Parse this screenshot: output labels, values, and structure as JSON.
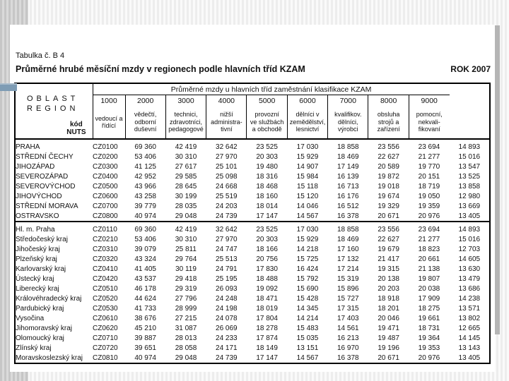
{
  "colors": {
    "accent_bar": "#7e9cb4"
  },
  "document": {
    "table_label": "Tabulka č. B 4",
    "title": "Průměrné hrubé měsíční mzdy v regionech podle hlavních tříd KZAM",
    "year_label": "ROK 2007"
  },
  "table": {
    "corner_title": "OBLAST\nREGION",
    "corner_sub": "kód\nNUTS",
    "span_header": "Průměrné mzdy u hlavních tříd zaměstnání klasifikace KZAM",
    "columns": [
      {
        "code": "1000",
        "desc": "vedoucí a\nřídící"
      },
      {
        "code": "2000",
        "desc": "vědečtí,\nodborní\nduševní"
      },
      {
        "code": "3000",
        "desc": "technici,\nzdravotníci,\npedagogové"
      },
      {
        "code": "4000",
        "desc": "nižší\nadministra-\ntivní"
      },
      {
        "code": "5000",
        "desc": "provozní\nve službách\na obchodě"
      },
      {
        "code": "6000",
        "desc": "dělníci v\nzemědělství,\nlesnictví"
      },
      {
        "code": "7000",
        "desc": "kvalifikov.\ndělníci,\nvýrobci"
      },
      {
        "code": "8000",
        "desc": "obsluha\nstrojů a\nzařízení"
      },
      {
        "code": "9000",
        "desc": "pomocní,\nnekvali-\nfikovaní"
      }
    ],
    "regions": [
      {
        "name": "PRAHA",
        "nuts": "CZ0100",
        "values": [
          "69 360",
          "42 419",
          "32 642",
          "23 525",
          "17 030",
          "18 858",
          "23 556",
          "23 694",
          "14 893"
        ]
      },
      {
        "name": "STŘEDNÍ ČECHY",
        "nuts": "CZ0200",
        "values": [
          "53 406",
          "30 310",
          "27 970",
          "20 303",
          "15 929",
          "18 469",
          "22 627",
          "21 277",
          "15 016"
        ]
      },
      {
        "name": "JIHOZÁPAD",
        "nuts": "CZ0300",
        "values": [
          "41 125",
          "27 617",
          "25 101",
          "19 480",
          "14 907",
          "17 149",
          "20 589",
          "19 770",
          "13 547"
        ]
      },
      {
        "name": "SEVEROZÁPAD",
        "nuts": "CZ0400",
        "values": [
          "42 952",
          "29 585",
          "25 098",
          "18 316",
          "15 984",
          "16 139",
          "19 872",
          "20 151",
          "13 525"
        ]
      },
      {
        "name": "SEVEROVÝCHOD",
        "nuts": "CZ0500",
        "values": [
          "43 966",
          "28 645",
          "24 668",
          "18 468",
          "15 118",
          "16 713",
          "19 018",
          "18 719",
          "13 858"
        ]
      },
      {
        "name": "JIHOVÝCHOD",
        "nuts": "CZ0600",
        "values": [
          "43 258",
          "30 199",
          "25 519",
          "18 160",
          "15 120",
          "16 176",
          "19 674",
          "19 050",
          "12 980"
        ]
      },
      {
        "name": "STŘEDNÍ MORAVA",
        "nuts": "CZ0700",
        "values": [
          "39 779",
          "28 035",
          "24 203",
          "18 014",
          "14 046",
          "16 512",
          "19 329",
          "19 359",
          "13 669"
        ]
      },
      {
        "name": "OSTRAVSKO",
        "nuts": "CZ0800",
        "values": [
          "40 974",
          "29 048",
          "24 739",
          "17 147",
          "14 567",
          "16 378",
          "20 671",
          "20 976",
          "13 405"
        ]
      }
    ],
    "kraje": [
      {
        "name": "Hl. m. Praha",
        "nuts": "CZ0110",
        "values": [
          "69 360",
          "42 419",
          "32 642",
          "23 525",
          "17 030",
          "18 858",
          "23 556",
          "23 694",
          "14 893"
        ]
      },
      {
        "name": "Středočeský kraj",
        "nuts": "CZ0210",
        "values": [
          "53 406",
          "30 310",
          "27 970",
          "20 303",
          "15 929",
          "18 469",
          "22 627",
          "21 277",
          "15 016"
        ]
      },
      {
        "name": "Jihočeský kraj",
        "nuts": "CZ0310",
        "values": [
          "39 079",
          "25 811",
          "24 747",
          "18 166",
          "14 218",
          "17 160",
          "19 679",
          "18 823",
          "12 703"
        ]
      },
      {
        "name": "Plzeňský kraj",
        "nuts": "CZ0320",
        "values": [
          "43 324",
          "29 764",
          "25 513",
          "20 756",
          "15 725",
          "17 132",
          "21 417",
          "20 661",
          "14 605"
        ]
      },
      {
        "name": "Karlovarský kraj",
        "nuts": "CZ0410",
        "values": [
          "41 405",
          "30 119",
          "24 791",
          "17 830",
          "16 424",
          "17 214",
          "19 315",
          "21 138",
          "13 630"
        ]
      },
      {
        "name": "Ústecký kraj",
        "nuts": "CZ0420",
        "values": [
          "43 537",
          "29 418",
          "25 195",
          "18 488",
          "15 792",
          "15 319",
          "20 138",
          "19 807",
          "13 479"
        ]
      },
      {
        "name": "Liberecký kraj",
        "nuts": "CZ0510",
        "values": [
          "46 178",
          "29 319",
          "26 093",
          "19 092",
          "15 690",
          "15 896",
          "20 203",
          "20 038",
          "13 686"
        ]
      },
      {
        "name": "Královéhradecký kraj",
        "nuts": "CZ0520",
        "values": [
          "44 624",
          "27 796",
          "24 248",
          "18 471",
          "15 428",
          "15 727",
          "18 918",
          "17 909",
          "14 238"
        ]
      },
      {
        "name": "Pardubický kraj",
        "nuts": "CZ0530",
        "values": [
          "41 733",
          "28 999",
          "24 198",
          "18 019",
          "14 345",
          "17 315",
          "18 201",
          "18 275",
          "13 571"
        ]
      },
      {
        "name": "Vysočina",
        "nuts": "CZ0610",
        "values": [
          "38 676",
          "27 215",
          "24 078",
          "17 804",
          "14 214",
          "17 403",
          "20 046",
          "19 661",
          "13 802"
        ]
      },
      {
        "name": "Jihomoravský kraj",
        "nuts": "CZ0620",
        "values": [
          "45 210",
          "31 087",
          "26 069",
          "18 278",
          "15 483",
          "14 561",
          "19 471",
          "18 731",
          "12 665"
        ]
      },
      {
        "name": "Olomoucký kraj",
        "nuts": "CZ0710",
        "values": [
          "39 887",
          "28 013",
          "24 233",
          "17 874",
          "15 035",
          "16 213",
          "19 487",
          "19 364",
          "14 145"
        ]
      },
      {
        "name": "Zlínský kraj",
        "nuts": "CZ0720",
        "values": [
          "39 651",
          "28 058",
          "24 171",
          "18 149",
          "13 151",
          "16 970",
          "19 196",
          "19 353",
          "13 143"
        ]
      },
      {
        "name": "Moravskoslezský kraj",
        "nuts": "CZ0810",
        "values": [
          "40 974",
          "29 048",
          "24 739",
          "17 147",
          "14 567",
          "16 378",
          "20 671",
          "20 976",
          "13 405"
        ]
      }
    ]
  }
}
